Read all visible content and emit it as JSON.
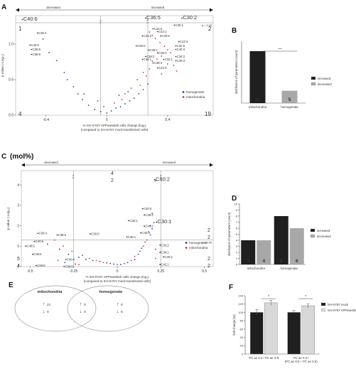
{
  "chart_data": [
    {
      "type": "scatter",
      "panel": "A",
      "arrows": {
        "left": "decreased",
        "right": "increased"
      },
      "xlabel": "% SH-SY5Y APPswedish cells change (log₂)\n(compared to SH-SY5Y mock-transfected cells)",
      "ylabel": "p value (-Log₁₀)",
      "xlim": [
        -0.6,
        0.7
      ],
      "ylim": [
        0,
        1.4
      ],
      "xticks": [
        "-0.4",
        "0",
        "0.4"
      ],
      "yticks": [
        "0.0",
        "0.5",
        "1.0"
      ],
      "threshold_label": "p = 0.05",
      "threshold": 1.3,
      "ns_labels": [
        "n.s.",
        "n.s."
      ],
      "corners": {
        "top_left": "1",
        "top_right": "2",
        "bottom_left": "4",
        "bottom_right": "19"
      },
      "legend": [
        "homogenate",
        "mitochondria"
      ],
      "annotations": [
        {
          "text": "C40:6",
          "x": -0.55,
          "y": 1.33,
          "big": true
        },
        {
          "text": "C36:5",
          "x": 0.26,
          "y": 1.35,
          "big": true
        },
        {
          "text": "C30:2",
          "x": 0.5,
          "y": 1.35,
          "big": true
        },
        {
          "text": "C36:4",
          "x": -0.45,
          "y": 1.14
        },
        {
          "text": "C40:0",
          "x": -0.5,
          "y": 0.97
        },
        {
          "text": "C36:5",
          "x": -0.49,
          "y": 0.91
        },
        {
          "text": "C38:6",
          "x": -0.49,
          "y": 0.84
        },
        {
          "text": "C30:1",
          "x": 0.45,
          "y": 1.25
        },
        {
          "text": "C42:3",
          "x": 0.31,
          "y": 1.2
        },
        {
          "text": "C42:1",
          "x": 0.34,
          "y": 1.16
        },
        {
          "text": "C42:2",
          "x": 0.24,
          "y": 1.1
        },
        {
          "text": "C40:8",
          "x": 0.36,
          "y": 1.1
        },
        {
          "text": "C42:4",
          "x": 0.48,
          "y": 1.02
        },
        {
          "text": "C36:0",
          "x": 0.2,
          "y": 0.96
        },
        {
          "text": "C42:5",
          "x": 0.46,
          "y": 0.96
        },
        {
          "text": "C38:1",
          "x": 0.28,
          "y": 0.9
        },
        {
          "text": "C40:4",
          "x": 0.46,
          "y": 0.91
        },
        {
          "text": "C38:3",
          "x": 0.34,
          "y": 0.86
        },
        {
          "text": "C38:2",
          "x": 0.26,
          "y": 0.81
        },
        {
          "text": "C34:2",
          "x": 0.46,
          "y": 0.81
        },
        {
          "text": "C36:1",
          "x": 0.24,
          "y": 0.77
        },
        {
          "text": "C32:1",
          "x": 0.38,
          "y": 0.77
        },
        {
          "text": "C38:4",
          "x": 0.31,
          "y": 0.72
        },
        {
          "text": "C40:3",
          "x": 0.46,
          "y": 0.75
        },
        {
          "text": "C34:3",
          "x": 0.34,
          "y": 0.65
        }
      ],
      "series": [
        {
          "name": "homogenate",
          "color": "#2b3d8f",
          "points": [
            [
              -0.42,
              1.07
            ],
            [
              -0.38,
              0.88
            ],
            [
              -0.33,
              0.77
            ],
            [
              -0.28,
              0.6
            ],
            [
              -0.26,
              0.5
            ],
            [
              -0.22,
              0.4
            ],
            [
              -0.19,
              0.3
            ],
            [
              -0.16,
              0.22
            ],
            [
              -0.12,
              0.14
            ],
            [
              -0.08,
              0.08
            ],
            [
              -0.04,
              0.05
            ],
            [
              0,
              0.03
            ],
            [
              0.03,
              0.06
            ],
            [
              0.06,
              0.1
            ],
            [
              0.09,
              0.12
            ],
            [
              0.12,
              0.16
            ],
            [
              0.15,
              0.2
            ],
            [
              0.18,
              0.24
            ],
            [
              0.21,
              0.3
            ],
            [
              0.24,
              0.36
            ],
            [
              0.27,
              0.44
            ],
            [
              -0.06,
              0.2
            ],
            [
              0.08,
              0.28
            ],
            [
              -0.15,
              0.3
            ],
            [
              0.14,
              0.33
            ]
          ]
        },
        {
          "name": "mitochondria",
          "color": "#d12e4a",
          "points": [
            [
              0.28,
              1.17
            ],
            [
              0.3,
              1.12
            ],
            [
              0.32,
              1.08
            ],
            [
              0.35,
              1.02
            ],
            [
              0.38,
              0.97
            ],
            [
              0.4,
              0.92
            ],
            [
              0.42,
              0.88
            ],
            [
              0.36,
              0.83
            ],
            [
              0.33,
              0.79
            ],
            [
              0.3,
              0.76
            ],
            [
              0.4,
              0.72
            ],
            [
              0.44,
              0.7
            ],
            [
              0.28,
              0.65
            ],
            [
              0.24,
              0.6
            ],
            [
              0.2,
              0.5
            ],
            [
              0.16,
              0.38
            ],
            [
              0.12,
              0.3
            ],
            [
              0.1,
              0.22
            ],
            [
              -0.02,
              0.12
            ],
            [
              0.05,
              0.17
            ],
            [
              0.36,
              0.58
            ],
            [
              0.46,
              0.62
            ],
            [
              0.26,
              0.55
            ],
            [
              0.22,
              0.42
            ]
          ]
        }
      ]
    },
    {
      "type": "bar",
      "panel": "B",
      "ylabel": "distribution of parameters (count)",
      "ylim": [
        0,
        25
      ],
      "categories": [
        "mitochondria",
        "homogenate"
      ],
      "series": [
        {
          "name": "increased",
          "color": "#1f1f1f",
          "values": [
            21,
            0
          ]
        },
        {
          "name": "decreased",
          "color": "#a8a8a8",
          "values": [
            0,
            5
          ]
        }
      ],
      "bar_labels": [
        "21",
        "5"
      ],
      "significance": "***",
      "legend": [
        "increased",
        "decreased"
      ]
    },
    {
      "type": "scatter",
      "panel": "C (mol%)",
      "arrows": {
        "left": "decreased",
        "right": "increased"
      },
      "xlabel": "% SH-SY5Y APPswedish cells change (log₂)\n(compared to SH-SY5Y mock-transfected cells)",
      "ylabel": "p value (-Log₁₀)",
      "xlim": [
        -0.55,
        0.55
      ],
      "ylim": [
        0,
        4.7
      ],
      "xticks": [
        "-0.5",
        "-0.25",
        "0",
        "0.25",
        "0.5"
      ],
      "yticks": [
        "0",
        "1",
        "2",
        "3",
        "4"
      ],
      "threshold_label": "p = 0.05",
      "threshold": 1.3,
      "ns_labels": [
        "n.s.",
        "n.s."
      ],
      "corners": {
        "top_mid_blue": "4",
        "top_mid_red": "2",
        "top_right_blue": "2",
        "top_right_red": "2",
        "bottom_left_blue": "5",
        "bottom_left_red": "4",
        "bottom_right_blue": "2",
        "bottom_right_red": "2"
      },
      "legend": [
        "homogenate",
        "mitochondria"
      ],
      "annotations": [
        {
          "text": "C40:2",
          "x": 0.22,
          "y": 4.2,
          "big": true
        },
        {
          "text": "C30:1",
          "x": 0.23,
          "y": 2.12,
          "big": true
        },
        {
          "text": "C40:5",
          "x": 0.15,
          "y": 2.78
        },
        {
          "text": "C38:2",
          "x": 0.16,
          "y": 2.48
        },
        {
          "text": "C38:1",
          "x": 0.07,
          "y": 2.2
        },
        {
          "text": "C40:2",
          "x": 0.16,
          "y": 1.93
        },
        {
          "text": "C40:3",
          "x": 0.14,
          "y": 1.6
        },
        {
          "text": "C36:1",
          "x": 0.06,
          "y": 1.4
        },
        {
          "text": "C32:2",
          "x": 0.25,
          "y": 1.0
        },
        {
          "text": "C30:1",
          "x": 0.25,
          "y": 0.65
        },
        {
          "text": "C30:2",
          "x": 0.27,
          "y": 0.42
        },
        {
          "text": "C42:1",
          "x": 0.25,
          "y": 0.05
        },
        {
          "text": "C36:4",
          "x": -0.45,
          "y": 1.58
        },
        {
          "text": "C38:5",
          "x": -0.34,
          "y": 1.5
        },
        {
          "text": "C30:0",
          "x": -0.15,
          "y": 1.55
        },
        {
          "text": "C40:6",
          "x": -0.47,
          "y": 1.18
        },
        {
          "text": "C40:5",
          "x": -0.52,
          "y": 0.95
        },
        {
          "text": "C38:6",
          "x": -0.48,
          "y": 0.55
        },
        {
          "text": "C40:0",
          "x": -0.29,
          "y": 0.3
        },
        {
          "text": "C38:6",
          "x": -0.46,
          "y": 0.0
        },
        {
          "text": "C38:5",
          "x": -0.3,
          "y": -0.05
        }
      ],
      "series": [
        {
          "name": "homogenate",
          "color": "#2b3d8f",
          "points": [
            [
              -0.4,
              1.1
            ],
            [
              -0.33,
              0.85
            ],
            [
              -0.28,
              0.6
            ],
            [
              -0.22,
              0.45
            ],
            [
              -0.18,
              0.35
            ],
            [
              -0.14,
              0.3
            ],
            [
              -0.1,
              0.25
            ],
            [
              -0.06,
              0.18
            ],
            [
              -0.02,
              0.12
            ],
            [
              0.02,
              0.1
            ],
            [
              0.06,
              0.2
            ],
            [
              0.1,
              0.35
            ],
            [
              0.12,
              0.6
            ],
            [
              0.14,
              0.9
            ],
            [
              0.16,
              1.2
            ],
            [
              0.19,
              1.55
            ],
            [
              0.2,
              1.85
            ],
            [
              0.21,
              2.15
            ],
            [
              0.2,
              2.6
            ],
            [
              0.22,
              4.2
            ],
            [
              -0.3,
              0.2
            ],
            [
              -0.24,
              0.12
            ]
          ]
        },
        {
          "name": "mitochondria",
          "color": "#d12e4a",
          "points": [
            [
              -0.36,
              1.3
            ],
            [
              -0.31,
              1.0
            ],
            [
              -0.26,
              0.75
            ],
            [
              -0.2,
              0.55
            ],
            [
              -0.16,
              0.4
            ],
            [
              -0.12,
              0.3
            ],
            [
              -0.08,
              0.2
            ],
            [
              -0.04,
              0.15
            ],
            [
              0.0,
              0.1
            ],
            [
              0.04,
              0.15
            ],
            [
              0.08,
              0.3
            ],
            [
              0.1,
              0.5
            ],
            [
              0.13,
              0.75
            ],
            [
              0.15,
              1.0
            ],
            [
              0.17,
              1.3
            ],
            [
              0.18,
              1.7
            ],
            [
              0.19,
              2.0
            ],
            [
              0.22,
              0.4
            ],
            [
              0.22,
              0.85
            ],
            [
              -0.34,
              0.3
            ],
            [
              -0.22,
              0.1
            ]
          ]
        }
      ]
    },
    {
      "type": "bar",
      "panel": "D",
      "ylabel": "distribution of parameters (count)",
      "ylim": [
        0,
        10
      ],
      "yticks": [
        "0",
        "1",
        "2",
        "3",
        "4",
        "5",
        "6",
        "7",
        "8",
        "9",
        "10"
      ],
      "categories": [
        "mitochondria",
        "homogenate"
      ],
      "series": [
        {
          "name": "increased",
          "color": "#1f1f1f",
          "values": [
            4,
            8
          ]
        },
        {
          "name": "decreased",
          "color": "#a8a8a8",
          "values": [
            4,
            6
          ]
        }
      ],
      "bar_labels": [
        "4",
        "4",
        "8",
        "6"
      ],
      "legend": [
        "increased",
        "decreased"
      ]
    },
    {
      "type": "venn",
      "panel": "E",
      "sets": [
        "mitochondria",
        "homogenate"
      ],
      "regions": [
        {
          "where": "mitochondria only",
          "up": "21",
          "down": "0"
        },
        {
          "where": "overlap",
          "up": "0",
          "down": "0"
        },
        {
          "where": "homogenate only",
          "up": "0",
          "down": "5"
        }
      ]
    },
    {
      "type": "bar",
      "panel": "F",
      "ylabel": "fold change (%)",
      "ylim": [
        0,
        140
      ],
      "yticks": [
        "0",
        "20",
        "40",
        "60",
        "80",
        "100",
        "120",
        "140"
      ],
      "categories": [
        "PC ae X:4 / PC ae X:6",
        "PC ae X:4 /\n(PC ae X:5 + PC ae X:6)"
      ],
      "series": [
        {
          "name": "SH-SY5Y mock",
          "color": "#1f1f1f",
          "values": [
            100,
            100
          ],
          "errors": [
            7,
            5
          ]
        },
        {
          "name": "SH-SY5Y APPswedish",
          "color": "#d8d8d8",
          "values": [
            123,
            116
          ],
          "errors": [
            6,
            5
          ]
        }
      ],
      "significance": [
        "*",
        "*"
      ],
      "legend": [
        "SH-SY5Y mock",
        "SH-SY5Y APPswedish"
      ]
    }
  ]
}
